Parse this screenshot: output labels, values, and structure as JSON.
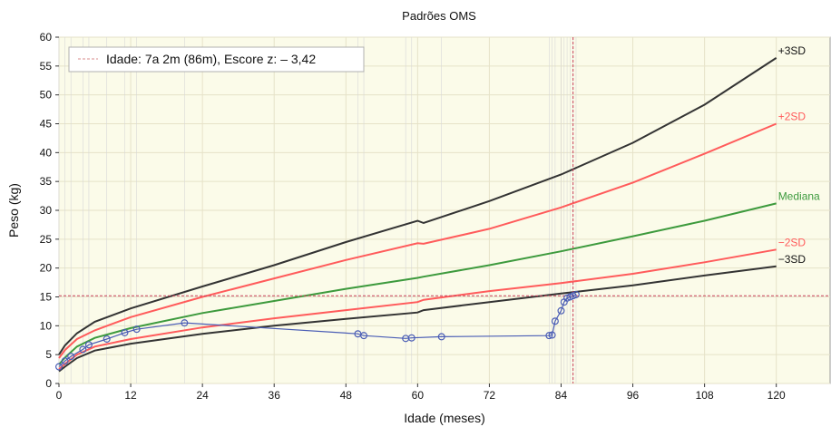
{
  "chart_data": {
    "type": "line",
    "title": "Padrões OMS",
    "xlabel": "Idade (meses)",
    "ylabel": "Peso (kg)",
    "xlim": [
      0,
      129
    ],
    "ylim": [
      0,
      60
    ],
    "xticks": [
      0,
      12,
      24,
      36,
      48,
      60,
      72,
      84,
      96,
      108,
      120
    ],
    "yticks": [
      0,
      5,
      10,
      15,
      20,
      25,
      30,
      35,
      40,
      45,
      50,
      55,
      60
    ],
    "grid": true,
    "legend": {
      "position": "top-left",
      "label": "Idade: 7a 2m (86m), Escore z: – 3,42"
    },
    "marker": {
      "age_months": 86,
      "weight_kg": 15.2
    },
    "series": [
      {
        "name": "+3SD",
        "color": "#333333",
        "x": [
          0,
          1,
          3,
          6,
          12,
          24,
          36,
          48,
          60,
          61,
          72,
          84,
          96,
          108,
          120
        ],
        "values": [
          5.0,
          6.6,
          8.7,
          10.7,
          13.0,
          16.8,
          20.5,
          24.5,
          28.2,
          27.8,
          31.6,
          36.2,
          41.7,
          48.3,
          56.4
        ]
      },
      {
        "name": "+2SD",
        "color": "#ff5b5b",
        "x": [
          0,
          1,
          3,
          6,
          12,
          24,
          36,
          48,
          60,
          61,
          72,
          84,
          96,
          108,
          120
        ],
        "values": [
          4.4,
          5.8,
          7.7,
          9.2,
          11.5,
          15.0,
          18.2,
          21.4,
          24.3,
          24.2,
          26.8,
          30.5,
          34.8,
          39.8,
          45.0
        ]
      },
      {
        "name": "Mediana",
        "color": "#3d9a3d",
        "x": [
          0,
          1,
          3,
          6,
          12,
          24,
          36,
          48,
          60,
          61,
          72,
          84,
          96,
          108,
          120
        ],
        "values": [
          3.3,
          4.5,
          6.4,
          7.9,
          9.6,
          12.2,
          14.3,
          16.4,
          18.3,
          18.5,
          20.5,
          22.9,
          25.5,
          28.2,
          31.2
        ]
      },
      {
        "name": "−2SD",
        "color": "#ff5b5b",
        "x": [
          0,
          1,
          3,
          6,
          12,
          24,
          36,
          48,
          60,
          61,
          72,
          84,
          96,
          108,
          120
        ],
        "values": [
          2.5,
          3.4,
          5.0,
          6.4,
          7.7,
          9.7,
          11.3,
          12.7,
          14.1,
          14.5,
          16.0,
          17.4,
          19.0,
          21.0,
          23.2
        ]
      },
      {
        "name": "−3SD",
        "color": "#333333",
        "x": [
          0,
          1,
          3,
          6,
          12,
          24,
          36,
          48,
          60,
          61,
          72,
          84,
          96,
          108,
          120
        ],
        "values": [
          2.1,
          2.9,
          4.4,
          5.7,
          6.9,
          8.6,
          10.0,
          11.2,
          12.3,
          12.7,
          14.1,
          15.6,
          17.0,
          18.7,
          20.3
        ]
      },
      {
        "name": "",
        "color": "#4a5db5",
        "x": [
          0,
          1,
          2,
          4,
          5,
          8,
          11,
          13,
          21,
          50,
          51,
          58,
          59,
          64,
          82,
          82.5,
          83,
          84,
          84.5,
          85,
          85.5,
          86,
          86.5
        ],
        "values": [
          2.9,
          3.9,
          4.7,
          5.9,
          6.7,
          7.7,
          8.8,
          9.4,
          10.5,
          8.6,
          8.3,
          7.8,
          7.9,
          8.1,
          8.3,
          8.4,
          10.8,
          12.6,
          14.1,
          14.8,
          15.0,
          15.2,
          15.4
        ]
      }
    ],
    "curve_labels": [
      {
        "text": "+3SD",
        "color": "#111111"
      },
      {
        "text": "+2SD",
        "color": "#ff5b5b"
      },
      {
        "text": "Mediana",
        "color": "#3d9a3d"
      },
      {
        "text": "−2SD",
        "color": "#ff5b5b"
      },
      {
        "text": "−3SD",
        "color": "#111111"
      }
    ]
  }
}
